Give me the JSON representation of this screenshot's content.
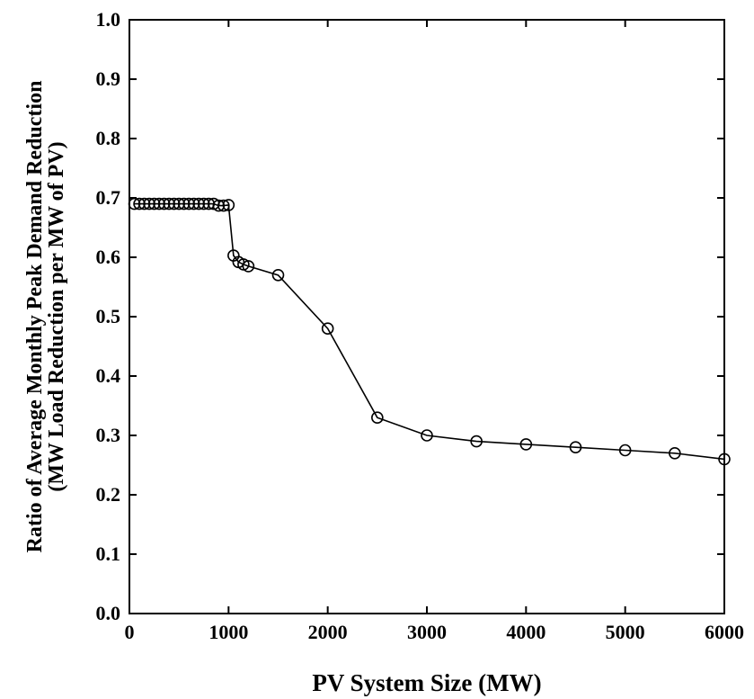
{
  "chart_data": {
    "type": "line",
    "title": "",
    "xlabel": "PV System Size (MW)",
    "ylabel_lines": [
      "Ratio of Average Monthly  Peak Demand Reduction",
      "(MW Load Reduction per MW of PV)"
    ],
    "xlim": [
      0,
      6000
    ],
    "ylim": [
      0,
      1.0
    ],
    "xticks": [
      0,
      1000,
      2000,
      3000,
      4000,
      5000,
      6000
    ],
    "xtick_labels": [
      "0",
      "1000",
      "2000",
      "3000",
      "4000",
      "5000",
      "6000"
    ],
    "yticks": [
      0,
      0.1,
      0.2,
      0.3,
      0.4,
      0.5,
      0.6,
      0.7,
      0.8,
      0.9,
      1.0
    ],
    "ytick_labels": [
      "0.0",
      "0.1",
      "0.2",
      "0.3",
      "0.4",
      "0.5",
      "0.6",
      "0.7",
      "0.8",
      "0.9",
      "1.0"
    ],
    "grid": false,
    "marker": "open-circle",
    "series": [
      {
        "x": [
          50,
          100,
          150,
          200,
          250,
          300,
          350,
          400,
          450,
          500,
          550,
          600,
          650,
          700,
          750,
          800,
          850,
          900,
          950,
          1000,
          1050,
          1100,
          1150,
          1200,
          1500,
          2000,
          2500,
          3000,
          3500,
          4000,
          4500,
          5000,
          5500,
          6000
        ],
        "y": [
          0.69,
          0.69,
          0.69,
          0.69,
          0.69,
          0.69,
          0.69,
          0.69,
          0.69,
          0.69,
          0.69,
          0.69,
          0.69,
          0.69,
          0.69,
          0.69,
          0.69,
          0.687,
          0.687,
          0.688,
          0.603,
          0.592,
          0.588,
          0.585,
          0.57,
          0.48,
          0.33,
          0.3,
          0.29,
          0.285,
          0.28,
          0.275,
          0.27,
          0.26
        ]
      }
    ]
  }
}
